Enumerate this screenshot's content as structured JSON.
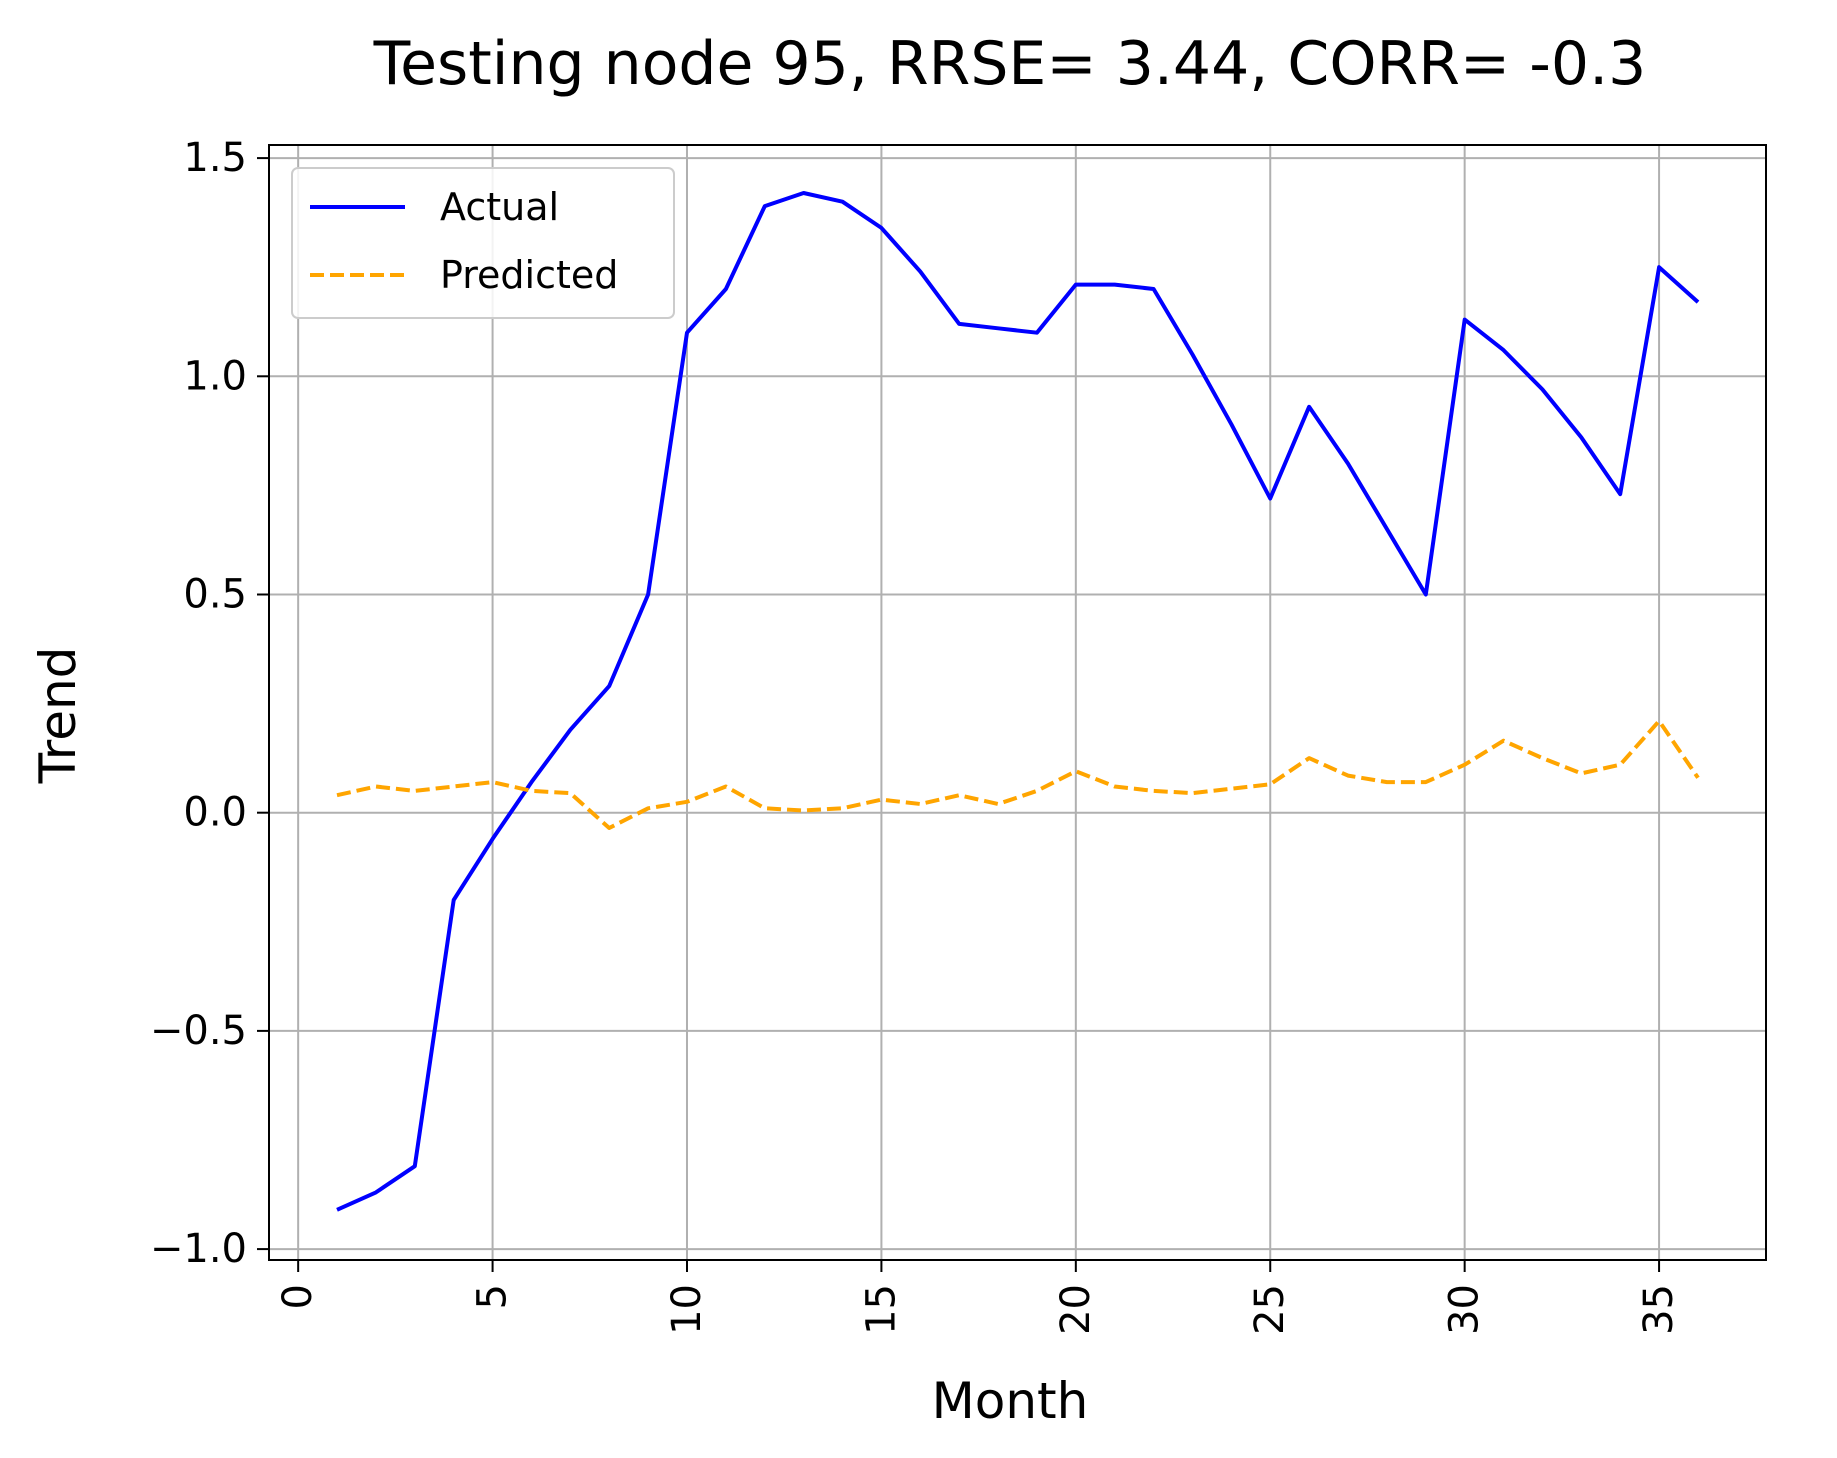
{
  "chart_data": {
    "type": "line",
    "title": "Testing node 95, RRSE= 3.44, CORR= -0.3",
    "xlabel": "Month",
    "ylabel": "Trend",
    "xlim": [
      -0.75,
      37.75
    ],
    "ylim": [
      -1.025,
      1.53
    ],
    "xticks": [
      0,
      5,
      10,
      15,
      20,
      25,
      30,
      35
    ],
    "xtick_labels": [
      "0",
      "5",
      "10",
      "15",
      "20",
      "25",
      "30",
      "35"
    ],
    "xtick_rotation": -90,
    "yticks": [
      -1.0,
      -0.5,
      0.0,
      0.5,
      1.0,
      1.5
    ],
    "ytick_labels": [
      "−1.0",
      "−0.5",
      "0.0",
      "0.5",
      "1.0",
      "1.5"
    ],
    "grid": true,
    "legend_position": "top-left",
    "x": [
      1,
      2,
      3,
      4,
      5,
      6,
      7,
      8,
      9,
      10,
      11,
      12,
      13,
      14,
      15,
      16,
      17,
      18,
      19,
      20,
      21,
      22,
      23,
      24,
      25,
      26,
      27,
      28,
      29,
      30,
      31,
      32,
      33,
      34,
      35,
      36
    ],
    "series": [
      {
        "name": "Actual",
        "color": "#0000ff",
        "style": "solid",
        "values": [
          -0.91,
          -0.87,
          -0.81,
          -0.2,
          -0.06,
          0.07,
          0.19,
          0.29,
          0.5,
          1.1,
          1.2,
          1.39,
          1.42,
          1.4,
          1.34,
          1.24,
          1.12,
          1.11,
          1.1,
          1.21,
          1.21,
          1.2,
          1.05,
          0.89,
          0.72,
          0.93,
          0.8,
          0.65,
          0.5,
          1.13,
          1.06,
          0.97,
          0.86,
          0.73,
          1.25,
          1.17
        ]
      },
      {
        "name": "Predicted",
        "color": "#ffa500",
        "style": "dashed",
        "values": [
          0.04,
          0.06,
          0.05,
          0.06,
          0.07,
          0.05,
          0.045,
          -0.035,
          0.01,
          0.025,
          0.06,
          0.01,
          0.005,
          0.01,
          0.03,
          0.02,
          0.04,
          0.02,
          0.05,
          0.095,
          0.06,
          0.05,
          0.045,
          0.055,
          0.065,
          0.125,
          0.085,
          0.07,
          0.07,
          0.11,
          0.165,
          0.125,
          0.09,
          0.11,
          0.21,
          0.08
        ]
      }
    ]
  }
}
